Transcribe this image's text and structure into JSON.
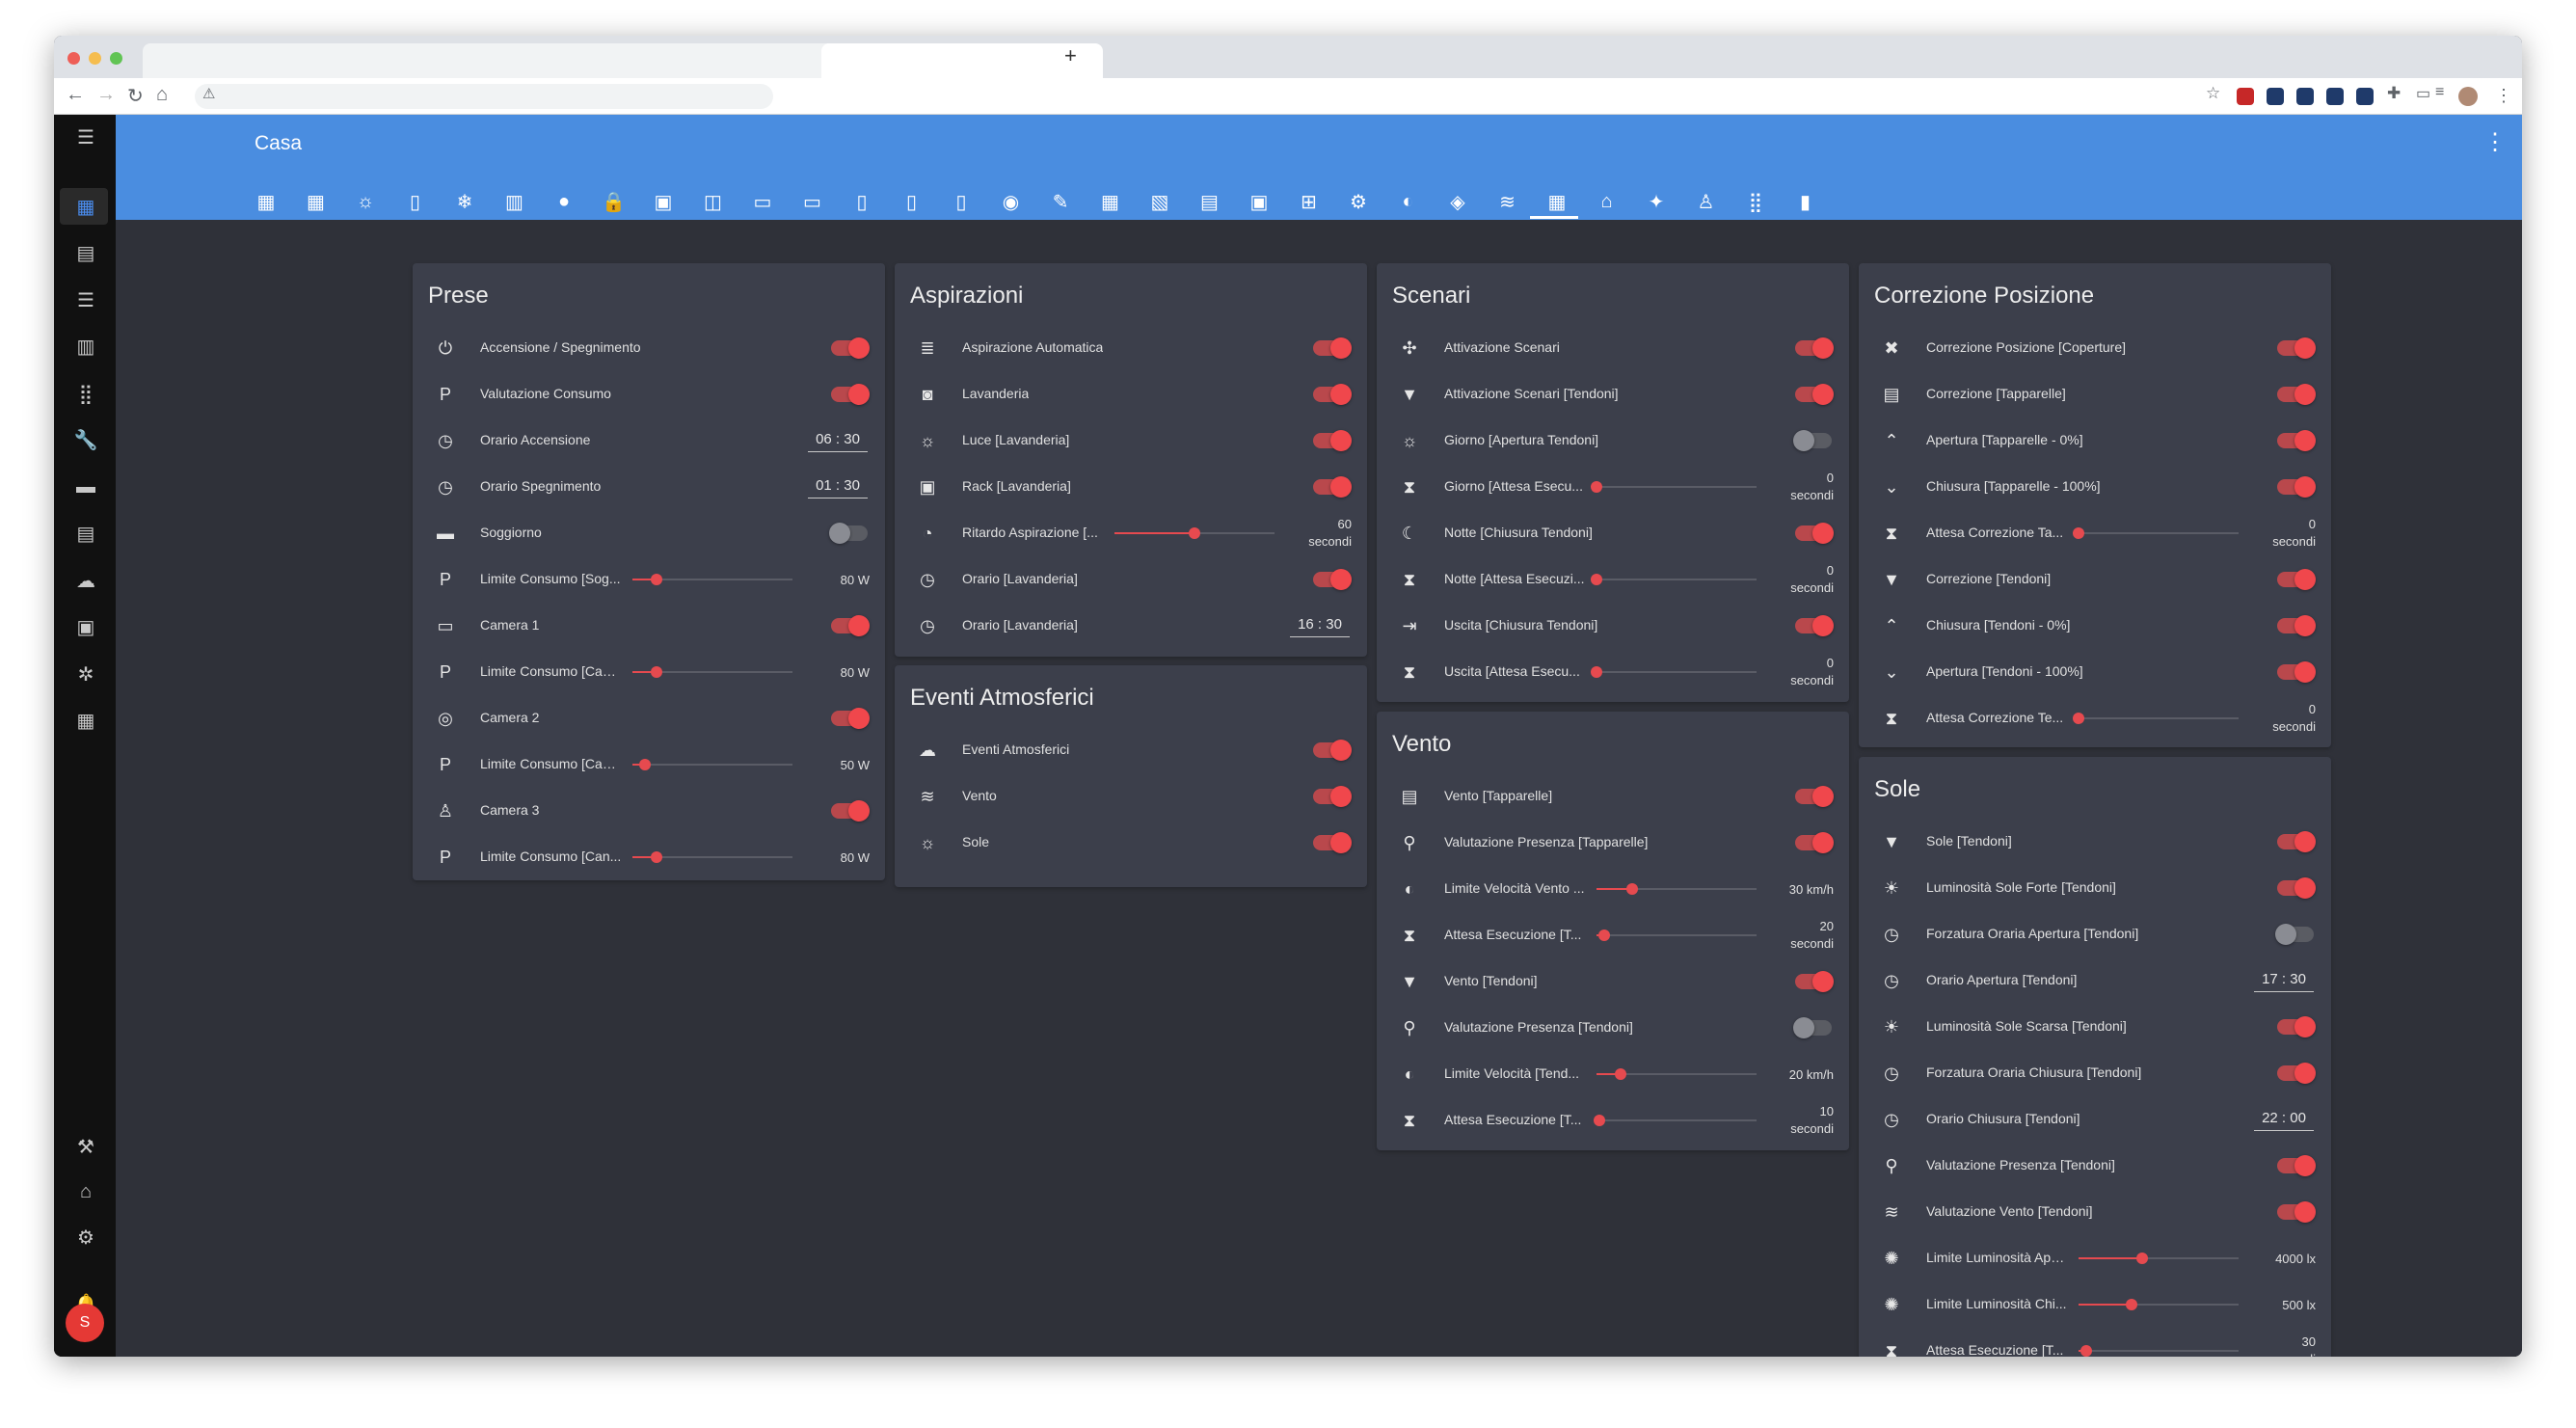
{
  "app": {
    "title": "Casa",
    "user_initial": "S"
  },
  "view_tab_icons": [
    "overview-icon",
    "dashboard-icon",
    "light-bulb-icon",
    "remote-icon",
    "ac-icon",
    "radiator-icon",
    "water-drop-icon",
    "lock-icon",
    "car-icon",
    "cast-icon",
    "monitor-icon",
    "tv-icon",
    "speaker-icon",
    "router-icon",
    "thermometer-icon",
    "signal-icon",
    "leaf-icon",
    "calendar-icon",
    "image-icon",
    "panel-icon",
    "dock-icon",
    "network-icon",
    "chip-icon",
    "compass-icon",
    "cube-icon",
    "wind-icon",
    "blinds-icon",
    "home-icon",
    "magic-wand-icon",
    "person-icon",
    "grid-icon",
    "battery-icon"
  ],
  "sidebar_icons": [
    "dashboard-icon",
    "chat-icon",
    "list-icon",
    "chart-icon",
    "apps-icon",
    "wrench-icon",
    "store-icon",
    "document-icon",
    "cloud-icon",
    "terminal-icon",
    "settings-cog-icon",
    "calendar-icon"
  ],
  "sidebar_bottom_icons": [
    "hammer-icon",
    "home-gear-icon",
    "gear-icon",
    "bell-icon"
  ],
  "cards": {
    "prese": {
      "title": "Prese",
      "rows": [
        {
          "label": "Accensione / Spegnimento",
          "icon": "power-icon",
          "glyph": "⏻",
          "toggle": "on"
        },
        {
          "label": "Valutazione Consumo",
          "icon": "parking-icon",
          "glyph": "P",
          "toggle": "on"
        },
        {
          "label": "Orario Accensione",
          "icon": "clock-icon",
          "glyph": "◷",
          "time": "06 : 30"
        },
        {
          "label": "Orario Spegnimento",
          "icon": "clock-icon",
          "glyph": "◷",
          "time": "01 : 30"
        },
        {
          "label": "Soggiorno",
          "icon": "sofa-icon",
          "glyph": "▬",
          "toggle": "off"
        },
        {
          "label": "Limite Consumo [Sog...",
          "icon": "parking-icon",
          "glyph": "P",
          "slider": 0.15,
          "value": "80 W"
        },
        {
          "label": "Camera 1",
          "icon": "bed-icon",
          "glyph": "▭",
          "toggle": "on"
        },
        {
          "label": "Limite Consumo [Cam...",
          "icon": "parking-icon",
          "glyph": "P",
          "slider": 0.15,
          "value": "80 W"
        },
        {
          "label": "Camera 2",
          "icon": "gamepad-icon",
          "glyph": "◎",
          "toggle": "on"
        },
        {
          "label": "Limite Consumo [Cam...",
          "icon": "parking-icon",
          "glyph": "P",
          "slider": 0.08,
          "value": "50 W"
        },
        {
          "label": "Camera 3",
          "icon": "child-icon",
          "glyph": "♙",
          "toggle": "on"
        },
        {
          "label": "Limite Consumo [Can...",
          "icon": "parking-icon",
          "glyph": "P",
          "slider": 0.15,
          "value": "80 W"
        }
      ]
    },
    "aspirazioni": {
      "title": "Aspirazioni",
      "rows": [
        {
          "label": "Aspirazione Automatica",
          "icon": "vent-icon",
          "glyph": "≣",
          "toggle": "on"
        },
        {
          "label": "Lavanderia",
          "icon": "washer-icon",
          "glyph": "◙",
          "toggle": "on"
        },
        {
          "label": "Luce [Lavanderia]",
          "icon": "light-icon",
          "glyph": "☼",
          "toggle": "on"
        },
        {
          "label": "Rack [Lavanderia]",
          "icon": "rack-icon",
          "glyph": "▣",
          "toggle": "on"
        },
        {
          "label": "Ritardo Aspirazione [...",
          "icon": "timer-icon",
          "glyph": "◔",
          "slider": 0.5,
          "value2": [
            "60",
            "secondi"
          ]
        },
        {
          "label": "Orario [Lavanderia]",
          "icon": "clock-icon",
          "glyph": "◷",
          "toggle": "on"
        },
        {
          "label": "Orario [Lavanderia]",
          "icon": "clock-icon",
          "glyph": "◷",
          "time": "16 : 30"
        }
      ]
    },
    "eventi": {
      "title": "Eventi Atmosferici",
      "rows": [
        {
          "label": "Eventi Atmosferici",
          "icon": "cloud-icon",
          "glyph": "☁",
          "toggle": "on"
        },
        {
          "label": "Vento",
          "icon": "wind-icon",
          "glyph": "≋",
          "toggle": "on"
        },
        {
          "label": "Sole",
          "icon": "sun-icon",
          "glyph": "☼",
          "toggle": "on"
        }
      ]
    },
    "scenari": {
      "title": "Scenari",
      "rows": [
        {
          "label": "Attivazione Scenari",
          "icon": "scene-icon",
          "glyph": "✣",
          "toggle": "on"
        },
        {
          "label": "Attivazione Scenari [Tendoni]",
          "icon": "awning-icon",
          "glyph": "▼",
          "toggle": "on"
        },
        {
          "label": "Giorno [Apertura Tendoni]",
          "icon": "sun-icon",
          "glyph": "☼",
          "toggle": "off"
        },
        {
          "label": "Giorno [Attesa Esecu...",
          "icon": "hourglass-icon",
          "glyph": "⧗",
          "slider": 0.0,
          "value2": [
            "0",
            "secondi"
          ]
        },
        {
          "label": "Notte [Chiusura Tendoni]",
          "icon": "moon-icon",
          "glyph": "☾",
          "toggle": "on"
        },
        {
          "label": "Notte [Attesa Esecuzi...",
          "icon": "hourglass-icon",
          "glyph": "⧗",
          "slider": 0.0,
          "value2": [
            "0",
            "secondi"
          ]
        },
        {
          "label": "Uscita [Chiusura Tendoni]",
          "icon": "exit-icon",
          "glyph": "⇥",
          "toggle": "on"
        },
        {
          "label": "Uscita [Attesa Esecu...",
          "icon": "hourglass-icon",
          "glyph": "⧗",
          "slider": 0.0,
          "value2": [
            "0",
            "secondi"
          ]
        }
      ]
    },
    "vento": {
      "title": "Vento",
      "rows": [
        {
          "label": "Vento [Tapparelle]",
          "icon": "shutter-icon",
          "glyph": "▤",
          "toggle": "on"
        },
        {
          "label": "Valutazione Presenza [Tapparelle]",
          "icon": "person-search-icon",
          "glyph": "⚲",
          "toggle": "on"
        },
        {
          "label": "Limite Velocità Vento ...",
          "icon": "speedometer-icon",
          "glyph": "◐",
          "slider": 0.22,
          "value": "30 km/h"
        },
        {
          "label": "Attesa Esecuzione [T...",
          "icon": "hourglass-icon",
          "glyph": "⧗",
          "slider": 0.05,
          "value2": [
            "20",
            "secondi"
          ]
        },
        {
          "label": "Vento [Tendoni]",
          "icon": "awning-icon",
          "glyph": "▼",
          "toggle": "on"
        },
        {
          "label": "Valutazione Presenza [Tendoni]",
          "icon": "person-search-icon",
          "glyph": "⚲",
          "toggle": "off"
        },
        {
          "label": "Limite Velocità [Tend...",
          "icon": "speedometer-icon",
          "glyph": "◐",
          "slider": 0.15,
          "value": "20 km/h"
        },
        {
          "label": "Attesa Esecuzione [T...",
          "icon": "hourglass-icon",
          "glyph": "⧗",
          "slider": 0.02,
          "value2": [
            "10",
            "secondi"
          ]
        }
      ]
    },
    "correzione": {
      "title": "Correzione Posizione",
      "rows": [
        {
          "label": "Correzione Posizione [Coperture]",
          "icon": "tools-icon",
          "glyph": "✖",
          "toggle": "on"
        },
        {
          "label": "Correzione [Tapparelle]",
          "icon": "shutter-icon",
          "glyph": "▤",
          "toggle": "on"
        },
        {
          "label": "Apertura [Tapparelle - 0%]",
          "icon": "chevron-up-circle-icon",
          "glyph": "⌃",
          "toggle": "on"
        },
        {
          "label": "Chiusura [Tapparelle - 100%]",
          "icon": "chevron-down-circle-icon",
          "glyph": "⌄",
          "toggle": "on"
        },
        {
          "label": "Attesa Correzione Ta...",
          "icon": "hourglass-icon",
          "glyph": "⧗",
          "slider": 0.0,
          "value2": [
            "0",
            "secondi"
          ]
        },
        {
          "label": "Correzione [Tendoni]",
          "icon": "awning-icon",
          "glyph": "▼",
          "toggle": "on"
        },
        {
          "label": "Chiusura [Tendoni - 0%]",
          "icon": "chevron-up-circle-icon",
          "glyph": "⌃",
          "toggle": "on"
        },
        {
          "label": "Apertura [Tendoni - 100%]",
          "icon": "chevron-down-circle-icon",
          "glyph": "⌄",
          "toggle": "on"
        },
        {
          "label": "Attesa Correzione Te...",
          "icon": "hourglass-icon",
          "glyph": "⧗",
          "slider": 0.0,
          "value2": [
            "0",
            "secondi"
          ]
        }
      ]
    },
    "sole": {
      "title": "Sole",
      "rows": [
        {
          "label": "Sole [Tendoni]",
          "icon": "awning-icon",
          "glyph": "▼",
          "toggle": "on"
        },
        {
          "label": "Luminosità Sole Forte [Tendoni]",
          "icon": "sun-strong-icon",
          "glyph": "☀",
          "toggle": "on"
        },
        {
          "label": "Forzatura Oraria Apertura [Tendoni]",
          "icon": "clock-down-icon",
          "glyph": "◷",
          "toggle": "off"
        },
        {
          "label": "Orario Apertura [Tendoni]",
          "icon": "clock-icon",
          "glyph": "◷",
          "time": "17 : 30"
        },
        {
          "label": "Luminosità Sole Scarsa [Tendoni]",
          "icon": "sun-weak-icon",
          "glyph": "☀",
          "toggle": "on"
        },
        {
          "label": "Forzatura Oraria Chiusura [Tendoni]",
          "icon": "clock-up-icon",
          "glyph": "◷",
          "toggle": "on"
        },
        {
          "label": "Orario Chiusura [Tendoni]",
          "icon": "clock-icon",
          "glyph": "◷",
          "time": "22 : 00"
        },
        {
          "label": "Valutazione Presenza [Tendoni]",
          "icon": "person-search-icon",
          "glyph": "⚲",
          "toggle": "on"
        },
        {
          "label": "Valutazione Vento [Tendoni]",
          "icon": "wind-icon",
          "glyph": "≋",
          "toggle": "on"
        },
        {
          "label": "Limite Luminosità Ape...",
          "icon": "brightness-icon",
          "glyph": "✺",
          "slider": 0.4,
          "value": "4000 lx"
        },
        {
          "label": "Limite Luminosità Chi...",
          "icon": "brightness-icon",
          "glyph": "✺",
          "slider": 0.33,
          "value": "500 lx"
        },
        {
          "label": "Attesa Esecuzione [T...",
          "icon": "hourglass-icon",
          "glyph": "⧗",
          "slider": 0.05,
          "value2": [
            "30",
            "secondi"
          ]
        }
      ]
    }
  }
}
